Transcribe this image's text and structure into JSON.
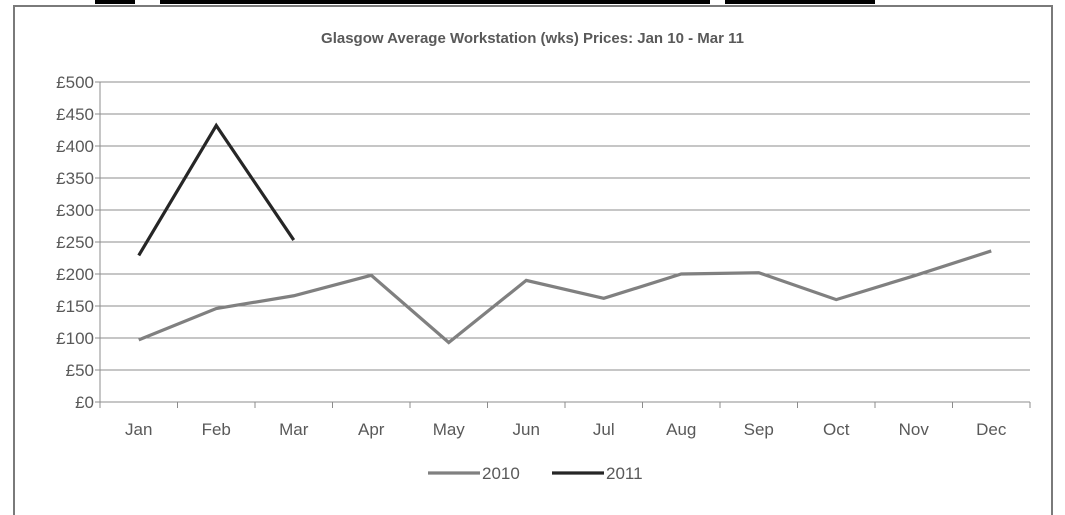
{
  "chart_data": {
    "type": "line",
    "title": "Glasgow Average  Workstation (wks) Prices: Jan 10 - Mar 11",
    "categories": [
      "Jan",
      "Feb",
      "Mar",
      "Apr",
      "May",
      "Jun",
      "Jul",
      "Aug",
      "Sep",
      "Oct",
      "Nov",
      "Dec"
    ],
    "y_ticks": [
      "£0",
      "£50",
      "£100",
      "£150",
      "£200",
      "£250",
      "£300",
      "£350",
      "£400",
      "£450",
      "£500"
    ],
    "ylim": [
      0,
      500
    ],
    "grid": true,
    "legend_position": "bottom",
    "series": [
      {
        "name": "2010",
        "color": "#808080",
        "values": [
          97,
          146,
          166,
          198,
          93,
          190,
          162,
          200,
          202,
          160,
          197,
          236
        ]
      },
      {
        "name": "2011",
        "color": "#262626",
        "values": [
          229,
          432,
          253,
          null,
          null,
          null,
          null,
          null,
          null,
          null,
          null,
          null
        ]
      }
    ]
  }
}
